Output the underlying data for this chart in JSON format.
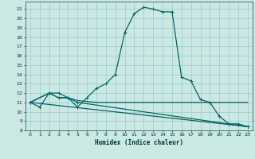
{
  "title": "",
  "xlabel": "Humidex (Indice chaleur)",
  "bg_color": "#cce8e4",
  "grid_color": "#99cccc",
  "line_color": "#006666",
  "xlim": [
    -0.5,
    23.5
  ],
  "ylim": [
    8,
    21.8
  ],
  "yticks": [
    8,
    9,
    10,
    11,
    12,
    13,
    14,
    15,
    16,
    17,
    18,
    19,
    20,
    21
  ],
  "xticks": [
    0,
    1,
    2,
    3,
    4,
    5,
    6,
    7,
    8,
    9,
    10,
    11,
    12,
    13,
    14,
    15,
    16,
    17,
    18,
    19,
    20,
    21,
    22,
    23
  ],
  "series0_x": [
    0,
    1,
    2,
    3,
    4,
    5,
    6,
    7,
    8,
    9,
    10,
    11,
    12,
    13,
    14,
    15,
    16,
    17,
    18,
    19,
    20,
    21,
    22,
    23
  ],
  "series0_y": [
    11,
    10.5,
    12,
    12,
    11.5,
    10.5,
    11.5,
    12.5,
    13,
    14,
    18.5,
    20.5,
    21.2,
    21,
    20.7,
    20.7,
    13.7,
    13.3,
    11.3,
    11.0,
    9.5,
    8.7,
    8.7,
    8.4
  ],
  "series1_x": [
    0,
    2,
    3,
    4,
    5,
    6,
    7,
    8,
    9,
    10,
    11,
    12,
    13,
    14,
    15,
    16,
    17,
    18,
    19,
    20,
    21,
    22,
    23
  ],
  "series1_y": [
    11,
    12,
    11.5,
    11.5,
    11.2,
    11.1,
    11.0,
    11.0,
    11.0,
    11.0,
    11.0,
    11.0,
    11.0,
    11.0,
    11.0,
    11.0,
    11.0,
    11.0,
    11.0,
    11.0,
    11.0,
    11.0,
    11.0
  ],
  "series2_x": [
    0,
    2,
    3,
    4,
    5,
    23
  ],
  "series2_y": [
    11,
    12,
    11.5,
    11.5,
    11,
    8.4
  ],
  "series3_x": [
    0,
    23
  ],
  "series3_y": [
    11,
    8.4
  ]
}
